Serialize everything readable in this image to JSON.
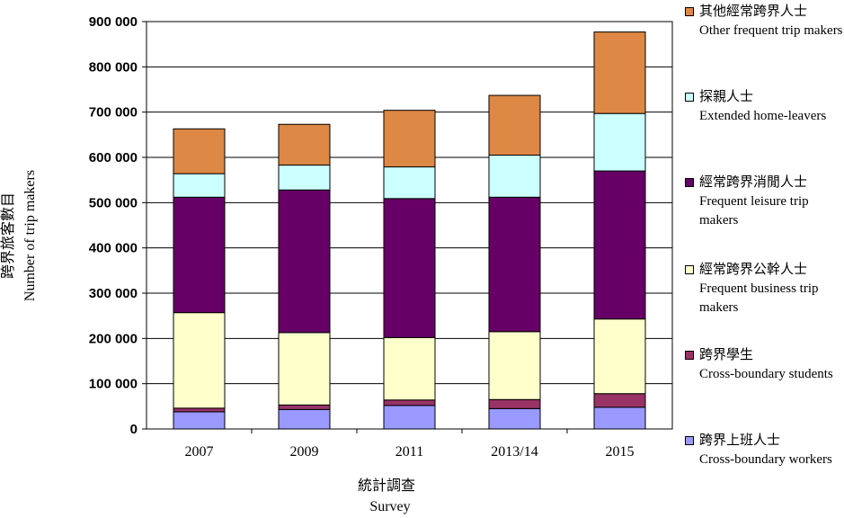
{
  "chart_data": {
    "type": "bar",
    "stacked": true,
    "categories": [
      "2007",
      "2009",
      "2011",
      "2013/14",
      "2015"
    ],
    "series": [
      {
        "name": "跨界上班人士 Cross-boundary workers",
        "name_zh": "跨界上班人士",
        "name_en": "Cross-boundary workers",
        "color": "#9999ff",
        "values": [
          38000,
          43000,
          52000,
          45000,
          48000
        ]
      },
      {
        "name": "跨界學生 Cross-boundary students",
        "name_zh": "跨界學生",
        "name_en": "Cross-boundary students",
        "color": "#993366",
        "values": [
          8000,
          10000,
          12000,
          20000,
          30000
        ]
      },
      {
        "name": "經常跨界公幹人士 Frequent business trip makers",
        "name_zh": "經常跨界公幹人士",
        "name_en": "Frequent business trip makers",
        "color": "#ffffcc",
        "values": [
          211000,
          160000,
          138000,
          150000,
          165000
        ]
      },
      {
        "name": "經常跨界消閒人士 Frequent leisure trip makers",
        "name_zh": "經常跨界消閒人士",
        "name_en": "Frequent leisure trip makers",
        "color": "#660066",
        "values": [
          255000,
          315000,
          307000,
          297000,
          327000
        ]
      },
      {
        "name": "探親人士 Extended home-leavers",
        "name_zh": "探親人士",
        "name_en": "Extended home-leavers",
        "color": "#ccffff",
        "values": [
          52000,
          55000,
          70000,
          93000,
          127000
        ]
      },
      {
        "name": "其他經常跨界人士 Other frequent trip makers",
        "name_zh": "其他經常跨界人士",
        "name_en": "Other frequent trip makers",
        "color": "#dd8844",
        "values": [
          99000,
          90000,
          125000,
          132000,
          180000
        ]
      }
    ],
    "ylim": [
      0,
      900000
    ],
    "yticks": [
      0,
      100000,
      200000,
      300000,
      400000,
      500000,
      600000,
      700000,
      800000,
      900000
    ],
    "ytick_labels": [
      "0",
      "100 000",
      "200 000",
      "300 000",
      "400 000",
      "500 000",
      "600 000",
      "700 000",
      "800 000",
      "900 000"
    ],
    "xlabel_zh": "統計調查",
    "xlabel_en": "Survey",
    "ylabel_zh": "跨界旅客數目",
    "ylabel_en": "Number of trip makers",
    "grid": true,
    "legend_position": "right",
    "legend_order": [
      5,
      4,
      3,
      2,
      1,
      0
    ]
  }
}
